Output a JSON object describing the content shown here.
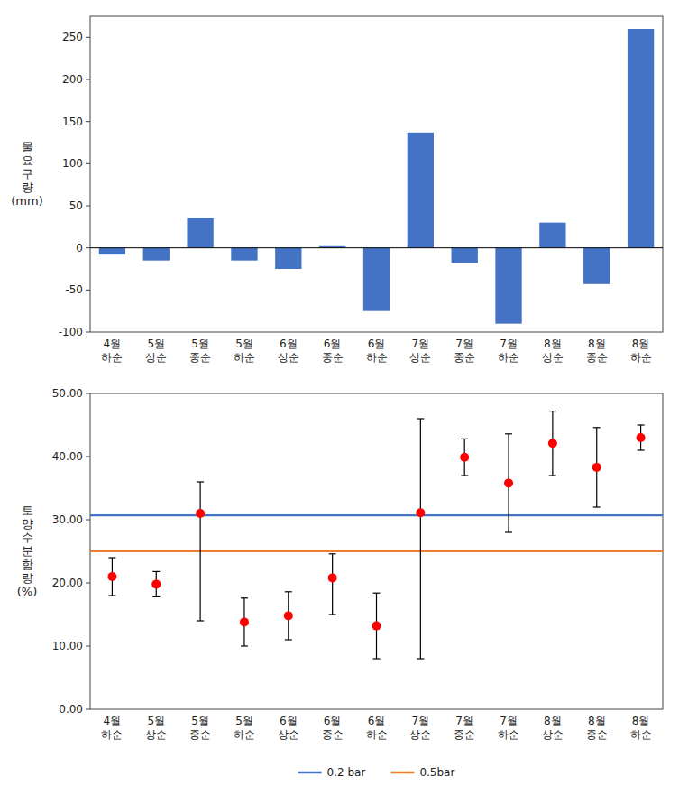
{
  "chart_data": [
    {
      "type": "bar",
      "categories": [
        "4월\n하순",
        "5월\n상순",
        "5월\n중순",
        "5월\n하순",
        "6월\n상순",
        "6월\n중순",
        "6월\n하순",
        "7월\n상순",
        "7월\n중순",
        "7월\n하순",
        "8월\n상순",
        "8월\n중순",
        "8월\n하순"
      ],
      "values": [
        -8,
        -15,
        35,
        -15,
        -25,
        2,
        -75,
        137,
        -18,
        -90,
        30,
        -43,
        260
      ],
      "color": "#4472C4",
      "ylim": [
        -100,
        275
      ],
      "yticks": [
        -100,
        -50,
        0,
        50,
        100,
        150,
        200,
        250
      ],
      "ylabel": "물\n요\n구\n량\n(mm)",
      "grid": false
    },
    {
      "type": "scatter",
      "categories": [
        "4월\n하순",
        "5월\n상순",
        "5월\n중순",
        "5월\n하순",
        "6월\n상순",
        "6월\n중순",
        "6월\n하순",
        "7월\n상순",
        "7월\n중순",
        "7월\n하순",
        "8월\n상순",
        "8월\n중순",
        "8월\n하순"
      ],
      "values": [
        21.0,
        19.8,
        31.0,
        13.8,
        14.8,
        20.8,
        13.2,
        31.1,
        39.9,
        35.8,
        42.1,
        38.3,
        43.0
      ],
      "error_low": [
        3.0,
        2.0,
        17.0,
        3.8,
        3.8,
        5.8,
        5.2,
        23.1,
        2.9,
        7.8,
        5.1,
        6.3,
        2.0
      ],
      "error_high": [
        3.0,
        2.0,
        5.0,
        3.8,
        3.8,
        3.8,
        5.2,
        14.9,
        2.9,
        7.8,
        5.1,
        6.3,
        2.0
      ],
      "color": "#FF0000",
      "ylim": [
        0,
        50
      ],
      "yticks": [
        {
          "value": 0.0,
          "label": "0.00"
        },
        {
          "value": 10.0,
          "label": "10.00"
        },
        {
          "value": 20.0,
          "label": "20.00"
        },
        {
          "value": 30.0,
          "label": "30.00"
        },
        {
          "value": 40.0,
          "label": "40.00"
        },
        {
          "value": 50.0,
          "label": "50.00"
        }
      ],
      "ylabel": "토\n양\n수\n분\n함\n량\n(%)",
      "reference_lines": [
        {
          "name": "0.2 bar",
          "color": "#4472C4",
          "value": 30.7
        },
        {
          "name": "0.5bar",
          "color": "#ED7D31",
          "value": 25.0
        }
      ],
      "legend": "bottom",
      "grid": false
    }
  ]
}
